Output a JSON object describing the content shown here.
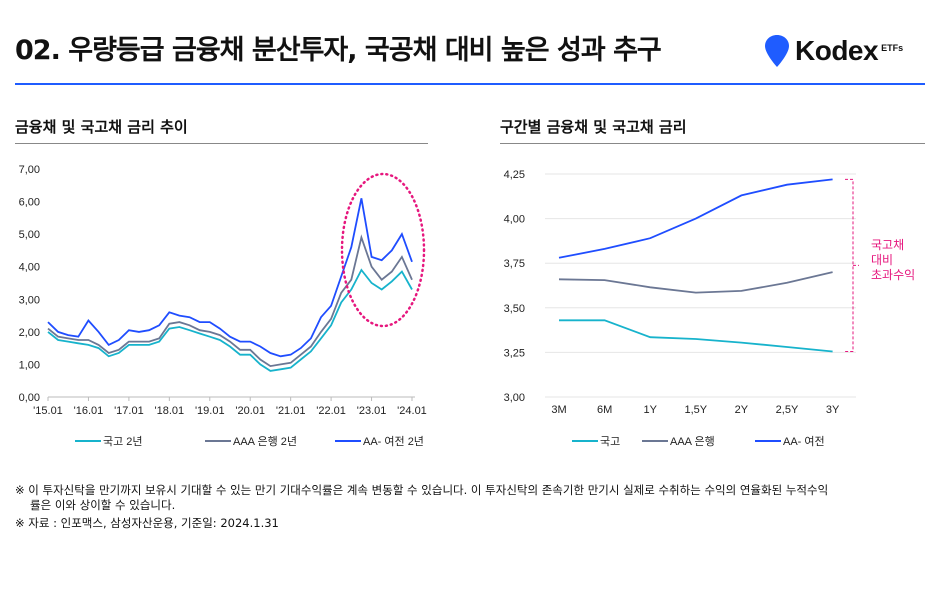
{
  "title": "02. 우량등급 금융채 분산투자, 국공채 대비 높은 성과 추구",
  "logo": {
    "text": "Kodex",
    "suffix": "ETFs"
  },
  "colors": {
    "accent": "#1f5cff",
    "gov": "#17b3cc",
    "aaa": "#6b7794",
    "aa": "#1f4dff",
    "highlight": "#e6177e"
  },
  "chart_data": [
    {
      "type": "line",
      "title": "금융채 및 국고채 금리 추이",
      "ylim": [
        0,
        7
      ],
      "yticks": [
        "0,00",
        "1,00",
        "2,00",
        "3,00",
        "4,00",
        "5,00",
        "6,00",
        "7,00"
      ],
      "xticks": [
        "'15.01",
        "'16.01",
        "'17.01",
        "'18.01",
        "'19.01",
        "'20.01",
        "'21.01",
        "'22.01",
        "'23.01",
        "'24.01"
      ],
      "x_start": 2015.0,
      "x_step": 0.25,
      "series": [
        {
          "name": "국고 2년",
          "values": [
            2.0,
            1.75,
            1.7,
            1.65,
            1.6,
            1.5,
            1.25,
            1.35,
            1.6,
            1.6,
            1.6,
            1.7,
            2.1,
            2.15,
            2.05,
            1.95,
            1.85,
            1.75,
            1.55,
            1.3,
            1.3,
            1.0,
            0.8,
            0.85,
            0.9,
            1.15,
            1.4,
            1.8,
            2.2,
            2.9,
            3.3,
            3.9,
            3.5,
            3.3,
            3.55,
            3.85,
            3.3
          ]
        },
        {
          "name": "AAA 은행 2년",
          "values": [
            2.1,
            1.85,
            1.8,
            1.75,
            1.75,
            1.6,
            1.35,
            1.45,
            1.7,
            1.7,
            1.7,
            1.8,
            2.25,
            2.3,
            2.2,
            2.05,
            2.0,
            1.9,
            1.7,
            1.45,
            1.45,
            1.15,
            0.95,
            1.0,
            1.05,
            1.3,
            1.55,
            2.0,
            2.4,
            3.2,
            3.6,
            4.9,
            4.0,
            3.6,
            3.85,
            4.3,
            3.6
          ]
        },
        {
          "name": "AA- 여전 2년",
          "values": [
            2.3,
            2.0,
            1.9,
            1.85,
            2.35,
            2.0,
            1.6,
            1.75,
            2.05,
            2.0,
            2.05,
            2.2,
            2.6,
            2.5,
            2.45,
            2.3,
            2.3,
            2.1,
            1.85,
            1.7,
            1.7,
            1.55,
            1.35,
            1.25,
            1.3,
            1.5,
            1.8,
            2.45,
            2.8,
            3.7,
            4.6,
            6.1,
            4.3,
            4.2,
            4.5,
            5.0,
            4.15
          ]
        }
      ]
    },
    {
      "type": "line",
      "title": "구간별 금융채 및 국고채 금리",
      "ylim": [
        3.0,
        4.25
      ],
      "yticks": [
        "3,00",
        "3,25",
        "3,50",
        "3,75",
        "4,00",
        "4,25"
      ],
      "categories": [
        "3M",
        "6M",
        "1Y",
        "1,5Y",
        "2Y",
        "2,5Y",
        "3Y"
      ],
      "series": [
        {
          "name": "국고",
          "values": [
            3.43,
            3.43,
            3.335,
            3.325,
            3.305,
            3.28,
            3.255
          ]
        },
        {
          "name": "AAA 은행",
          "values": [
            3.66,
            3.655,
            3.615,
            3.585,
            3.595,
            3.64,
            3.7
          ]
        },
        {
          "name": "AA- 여전",
          "values": [
            3.78,
            3.83,
            3.89,
            4.0,
            4.13,
            4.19,
            4.22
          ]
        }
      ],
      "annotation": [
        "국고채",
        "대비",
        "초과수익"
      ]
    }
  ],
  "notes": [
    "※ 이 투자신탁을 만기까지 보유시 기대할 수 있는 만기 기대수익률은 계속 변동할 수 있습니다. 이 투자신탁의 존속기한 만기시 실제로 수취하는 수익의 연율화된 누적수익",
    "률은 이와 상이할 수 있습니다.",
    "※ 자료 : 인포맥스, 삼성자산운용, 기준일: 2024.1.31"
  ]
}
